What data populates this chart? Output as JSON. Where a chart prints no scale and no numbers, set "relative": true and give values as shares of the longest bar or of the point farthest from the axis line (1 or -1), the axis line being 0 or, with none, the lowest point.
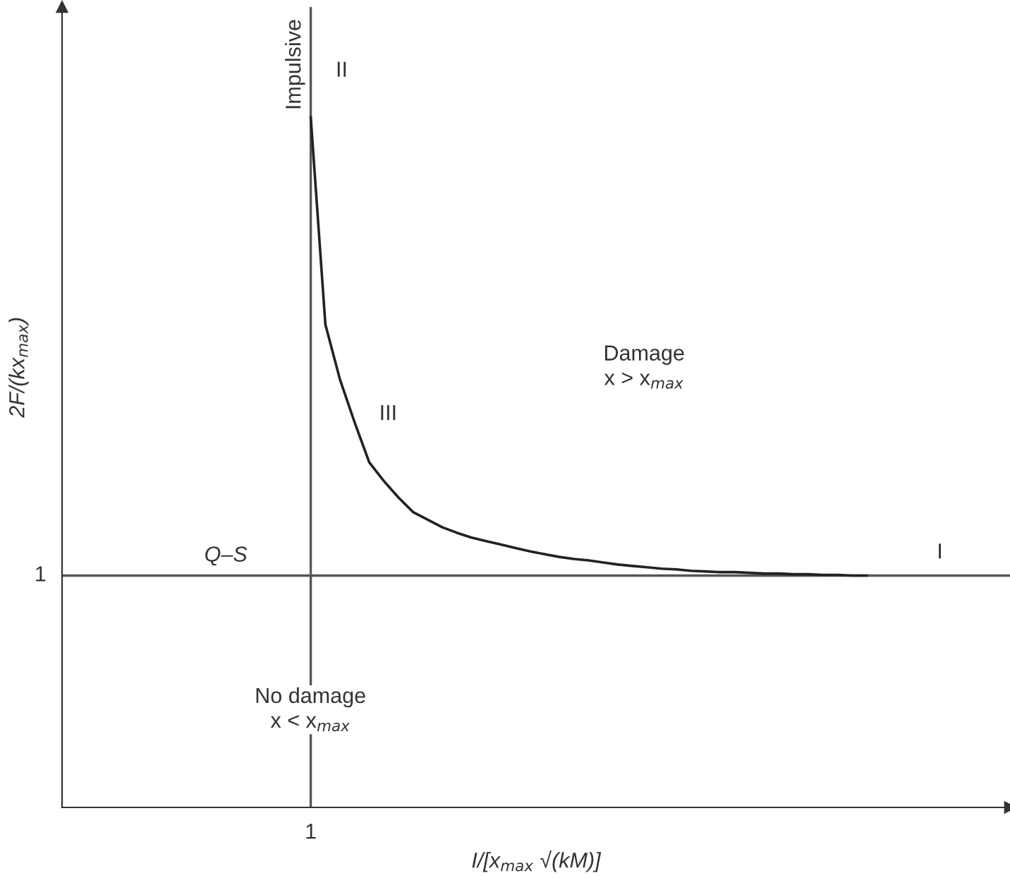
{
  "chart_data": {
    "type": "line",
    "relative": true,
    "xlabel": "I/[x$_{max}$ √(kM)]",
    "ylabel": "2F/(kx$_{max}$)",
    "marker": "none",
    "line_style": "solid",
    "categories": [
      null,
      null,
      null,
      null,
      null,
      null,
      null,
      null,
      null,
      null,
      null,
      null,
      null,
      null,
      null,
      null,
      null,
      null,
      null,
      null,
      null,
      null,
      null,
      null,
      null,
      null,
      null,
      null,
      null,
      null,
      null,
      null,
      null,
      null,
      null,
      null,
      null,
      null,
      null,
      null,
      null,
      null,
      null,
      null,
      null,
      null,
      null,
      null,
      null,
      null,
      null,
      null,
      null,
      null,
      null,
      null,
      null,
      null,
      null,
      null,
      null,
      null,
      null,
      null,
      null
    ],
    "series": [
      {
        "color": "#222222",
        "values": [
          null,
          null,
          null,
          null,
          null,
          null,
          null,
          null,
          null,
          null,
          null,
          null,
          null,
          null,
          null,
          null,
          null,
          1.0,
          0.7,
          0.62,
          0.558,
          0.5,
          0.473,
          0.449,
          0.428,
          0.417,
          0.406,
          0.398,
          0.391,
          0.386,
          0.381,
          0.376,
          0.371,
          0.367,
          0.363,
          0.36,
          0.358,
          0.355,
          0.352,
          0.35,
          0.348,
          0.346,
          0.345,
          0.343,
          0.342,
          0.341,
          0.341,
          0.34,
          0.339,
          0.339,
          0.338,
          0.338,
          0.337,
          0.337,
          0.336,
          0.336,
          null,
          null,
          null,
          null,
          null,
          null,
          null,
          null,
          null
        ]
      }
    ],
    "ref_lines": [
      {
        "axis": "y",
        "value": 0.336,
        "label": "Q–S",
        "color": "#555555"
      },
      {
        "axis": "x",
        "label": "Impulsive",
        "color": "#555555"
      }
    ],
    "annotations": [
      "1",
      "1",
      "II",
      "III",
      "I",
      "Damage\nx > x$_{max}$",
      "No damage\nx < x$_{max}$"
    ]
  }
}
